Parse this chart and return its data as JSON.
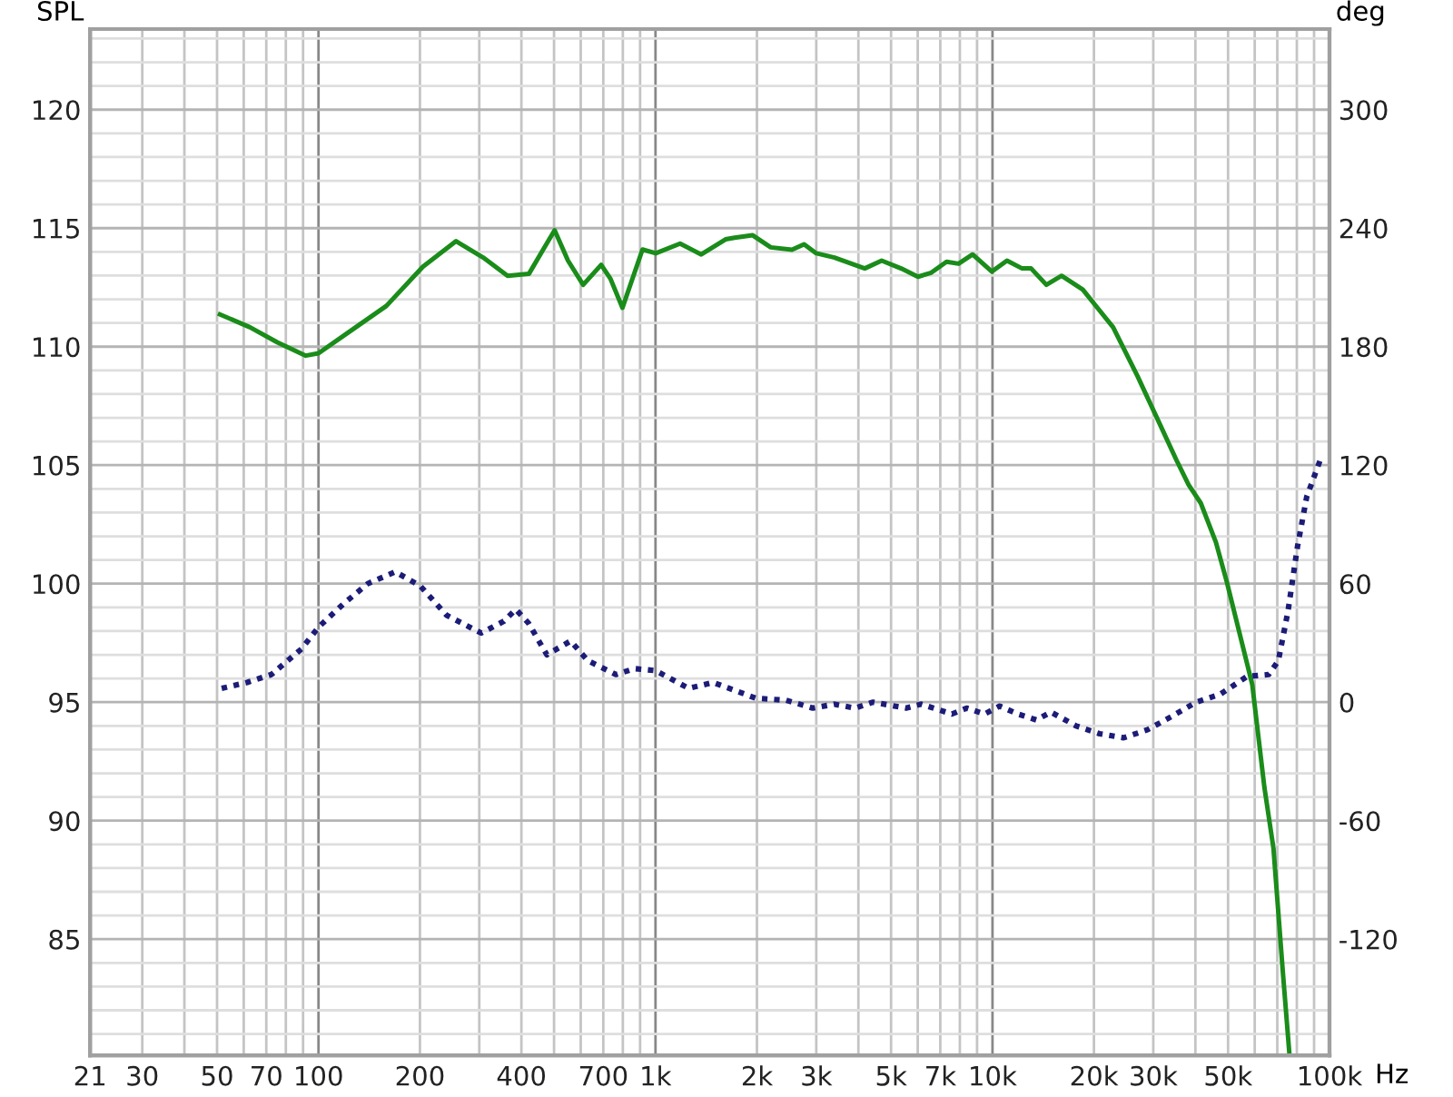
{
  "chart_data": {
    "type": "line",
    "ylabel": "SPL",
    "y2label": "deg",
    "xlim": [
      21,
      100000
    ],
    "ylim": [
      80.1,
      123.4
    ],
    "y2lim": [
      -178.8,
      340.8
    ],
    "log": "x",
    "grid": true,
    "xticks": [
      {
        "value": 21,
        "label": "21"
      },
      30,
      {
        "value": 40,
        "label": null
      },
      50,
      {
        "value": 60,
        "label": null
      },
      70,
      {
        "value": 80,
        "label": null
      },
      {
        "value": 90,
        "label": null
      },
      100,
      200,
      {
        "value": 300,
        "label": null
      },
      400,
      {
        "value": 500,
        "label": null
      },
      {
        "value": 600,
        "label": null
      },
      700,
      {
        "value": 800,
        "label": null
      },
      {
        "value": 900,
        "label": null
      },
      {
        "value": 1000,
        "label": "1k"
      },
      {
        "value": 2000,
        "label": "2k"
      },
      {
        "value": 3000,
        "label": "3k"
      },
      {
        "value": 4000,
        "label": null
      },
      {
        "value": 5000,
        "label": "5k"
      },
      {
        "value": 6000,
        "label": null
      },
      {
        "value": 7000,
        "label": "7k"
      },
      {
        "value": 8000,
        "label": null
      },
      {
        "value": 9000,
        "label": null
      },
      {
        "value": 10000,
        "label": "10k"
      },
      {
        "value": 20000,
        "label": "20k"
      },
      {
        "value": 30000,
        "label": "30k"
      },
      {
        "value": 40000,
        "label": null
      },
      {
        "value": 50000,
        "label": "50k"
      },
      {
        "value": 60000,
        "label": null
      },
      {
        "value": 70000,
        "label": null
      },
      {
        "value": 80000,
        "label": null
      },
      {
        "value": 90000,
        "label": null
      },
      {
        "value": 100000,
        "label": "100k"
      }
    ],
    "xlabel": "Hz",
    "yticks": [
      {
        "value": 81,
        "label": null
      },
      {
        "value": 82,
        "label": null
      },
      {
        "value": 83,
        "label": null
      },
      {
        "value": 84,
        "label": null
      },
      85,
      {
        "value": 86,
        "label": null
      },
      {
        "value": 87,
        "label": null
      },
      {
        "value": 88,
        "label": null
      },
      {
        "value": 89,
        "label": null
      },
      90,
      {
        "value": 91,
        "label": null
      },
      {
        "value": 92,
        "label": null
      },
      {
        "value": 93,
        "label": null
      },
      {
        "value": 94,
        "label": null
      },
      95,
      {
        "value": 96,
        "label": null
      },
      {
        "value": 97,
        "label": null
      },
      {
        "value": 98,
        "label": null
      },
      {
        "value": 99,
        "label": null
      },
      100,
      {
        "value": 101,
        "label": null
      },
      {
        "value": 102,
        "label": null
      },
      {
        "value": 103,
        "label": null
      },
      {
        "value": 104,
        "label": null
      },
      105,
      {
        "value": 106,
        "label": null
      },
      {
        "value": 107,
        "label": null
      },
      {
        "value": 108,
        "label": null
      },
      {
        "value": 109,
        "label": null
      },
      110,
      {
        "value": 111,
        "label": null
      },
      {
        "value": 112,
        "label": null
      },
      {
        "value": 113,
        "label": null
      },
      {
        "value": 114,
        "label": null
      },
      115,
      {
        "value": 116,
        "label": null
      },
      {
        "value": 117,
        "label": null
      },
      {
        "value": 118,
        "label": null
      },
      {
        "value": 119,
        "label": null
      },
      120,
      {
        "value": 121,
        "label": null
      },
      {
        "value": 122,
        "label": null
      },
      {
        "value": 123,
        "label": null
      }
    ],
    "y2ticks": [
      -120,
      -60,
      0,
      60,
      120,
      180,
      240,
      300
    ],
    "series": [
      {
        "color": "#1a8c1a",
        "line_style": "solid",
        "x": [
          51,
          62.6,
          75.5,
          91.7,
          100,
          129,
          159,
          204,
          256,
          308,
          364,
          421,
          466,
          502,
          550,
          610,
          690,
          735,
          798,
          915,
          1002,
          1183,
          1367,
          1614,
          1718,
          1943,
          2198,
          2541,
          2760,
          3000,
          3396,
          4178,
          4690,
          5355,
          6009,
          6580,
          7306,
          7930,
          8730,
          9960,
          11040,
          12240,
          13020,
          14450,
          16030,
          18530,
          20130,
          22800,
          26910,
          30470,
          35180,
          38190,
          41500,
          46020,
          49570,
          59000,
          64100,
          68200,
          72600,
          76000
        ],
        "values": [
          111.36,
          110.82,
          110.18,
          109.62,
          109.72,
          110.82,
          111.72,
          113.37,
          114.45,
          113.76,
          112.99,
          113.07,
          114.14,
          114.91,
          113.63,
          112.61,
          113.45,
          112.87,
          111.64,
          114.1,
          113.94,
          114.35,
          113.89,
          114.53,
          114.6,
          114.7,
          114.19,
          114.09,
          114.32,
          113.94,
          113.76,
          113.3,
          113.63,
          113.3,
          112.95,
          113.12,
          113.58,
          113.5,
          113.89,
          113.17,
          113.63,
          113.3,
          113.3,
          112.61,
          112.99,
          112.41,
          111.77,
          110.82,
          108.77,
          107.12,
          105.2,
          104.17,
          103.4,
          101.75,
          100.08,
          95.74,
          91.4,
          88.83,
          83.73,
          80.2
        ]
      },
      {
        "color": "#1c1c78",
        "line_style": "dotted",
        "axis": "y2",
        "x": [
          51.6,
          61.4,
          72.5,
          89.1,
          100,
          119,
          140,
          169,
          200,
          240,
          304,
          355,
          385,
          420,
          476,
          560,
          630,
          763,
          866,
          1000,
          1255,
          1483,
          1985,
          2440,
          2930,
          3396,
          3910,
          4420,
          5540,
          6140,
          7580,
          8380,
          9470,
          10500,
          11900,
          13500,
          14900,
          17700,
          20800,
          24500,
          28800,
          34200,
          40200,
          47400,
          56900,
          66000,
          70500,
          75300,
          80400,
          85600,
          95000
        ],
        "values": [
          7,
          10,
          14,
          27,
          38,
          50,
          60,
          66,
          59,
          44,
          35,
          41,
          47,
          40,
          24,
          31,
          21,
          14,
          17,
          16,
          7,
          10,
          2,
          1,
          -3,
          -1,
          -3,
          0,
          -3,
          -1,
          -6,
          -3,
          -6,
          -2,
          -6,
          -9,
          -5,
          -12,
          -16,
          -18,
          -14,
          -7,
          0,
          4,
          13,
          14,
          21,
          46,
          79,
          104,
          125
        ]
      }
    ]
  }
}
